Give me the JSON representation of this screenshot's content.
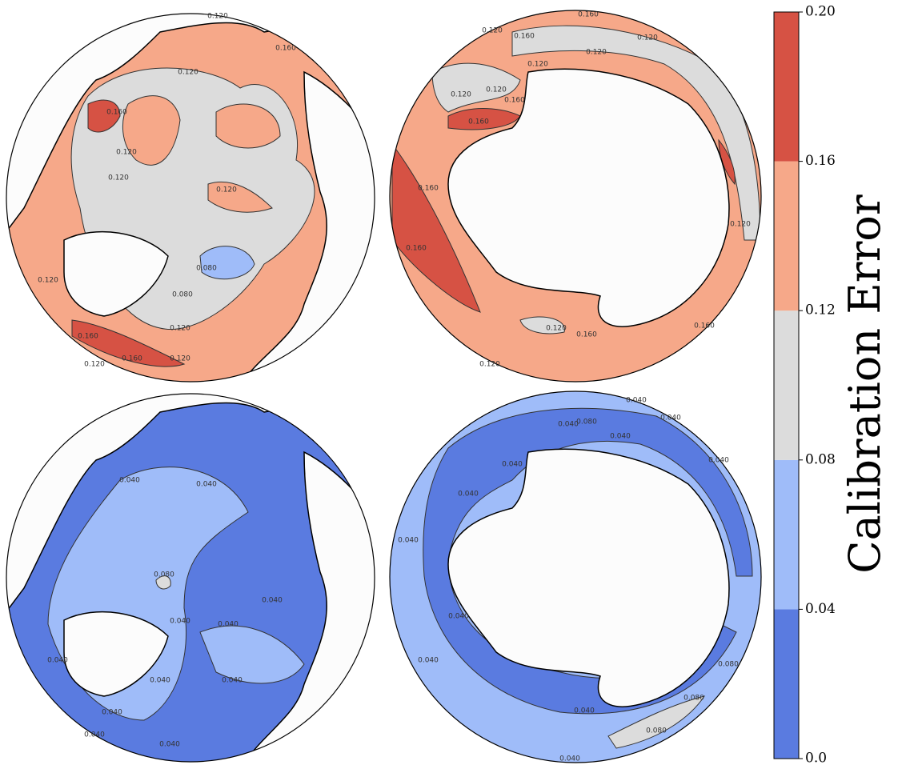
{
  "colorbar": {
    "label": "Calibration Error",
    "lim": [
      0,
      0.2
    ],
    "ticks": [
      {
        "value": 0,
        "label": "0.0"
      },
      0.04,
      0.08,
      0.12,
      0.16,
      {
        "value": 0.2,
        "label": "0.20"
      }
    ],
    "colors": [
      "#5a7be0",
      "#9fbcf9",
      "#dcdcdc",
      "#f6a889",
      "#d65244"
    ]
  },
  "panels": [
    {
      "contour_labels": [
        "0.120",
        "0.120",
        "0.120",
        "0.120",
        "0.120",
        "0.120",
        "0.120",
        "0.120",
        "0.120",
        "0.160",
        "0.160",
        "0.160",
        "0.160",
        "0.080",
        "0.080"
      ]
    },
    {
      "contour_labels": [
        "0.120",
        "0.120",
        "0.120",
        "0.120",
        "0.120",
        "0.120",
        "0.120",
        "0.120",
        "0.120",
        "0.160",
        "0.160",
        "0.160",
        "0.160",
        "0.160",
        "0.160",
        "0.160",
        "0.160"
      ]
    },
    {
      "contour_labels": [
        "0.040",
        "0.040",
        "0.040",
        "0.040",
        "0.040",
        "0.040",
        "0.040",
        "0.040",
        "0.040",
        "0.040",
        "0.040",
        "0.080"
      ]
    },
    {
      "contour_labels": [
        "0.040",
        "0.040",
        "0.040",
        "0.040",
        "0.040",
        "0.040",
        "0.040",
        "0.040",
        "0.040",
        "0.040",
        "0.040",
        "0.040",
        "0.080",
        "0.080",
        "0.080",
        "0.080"
      ]
    }
  ]
}
